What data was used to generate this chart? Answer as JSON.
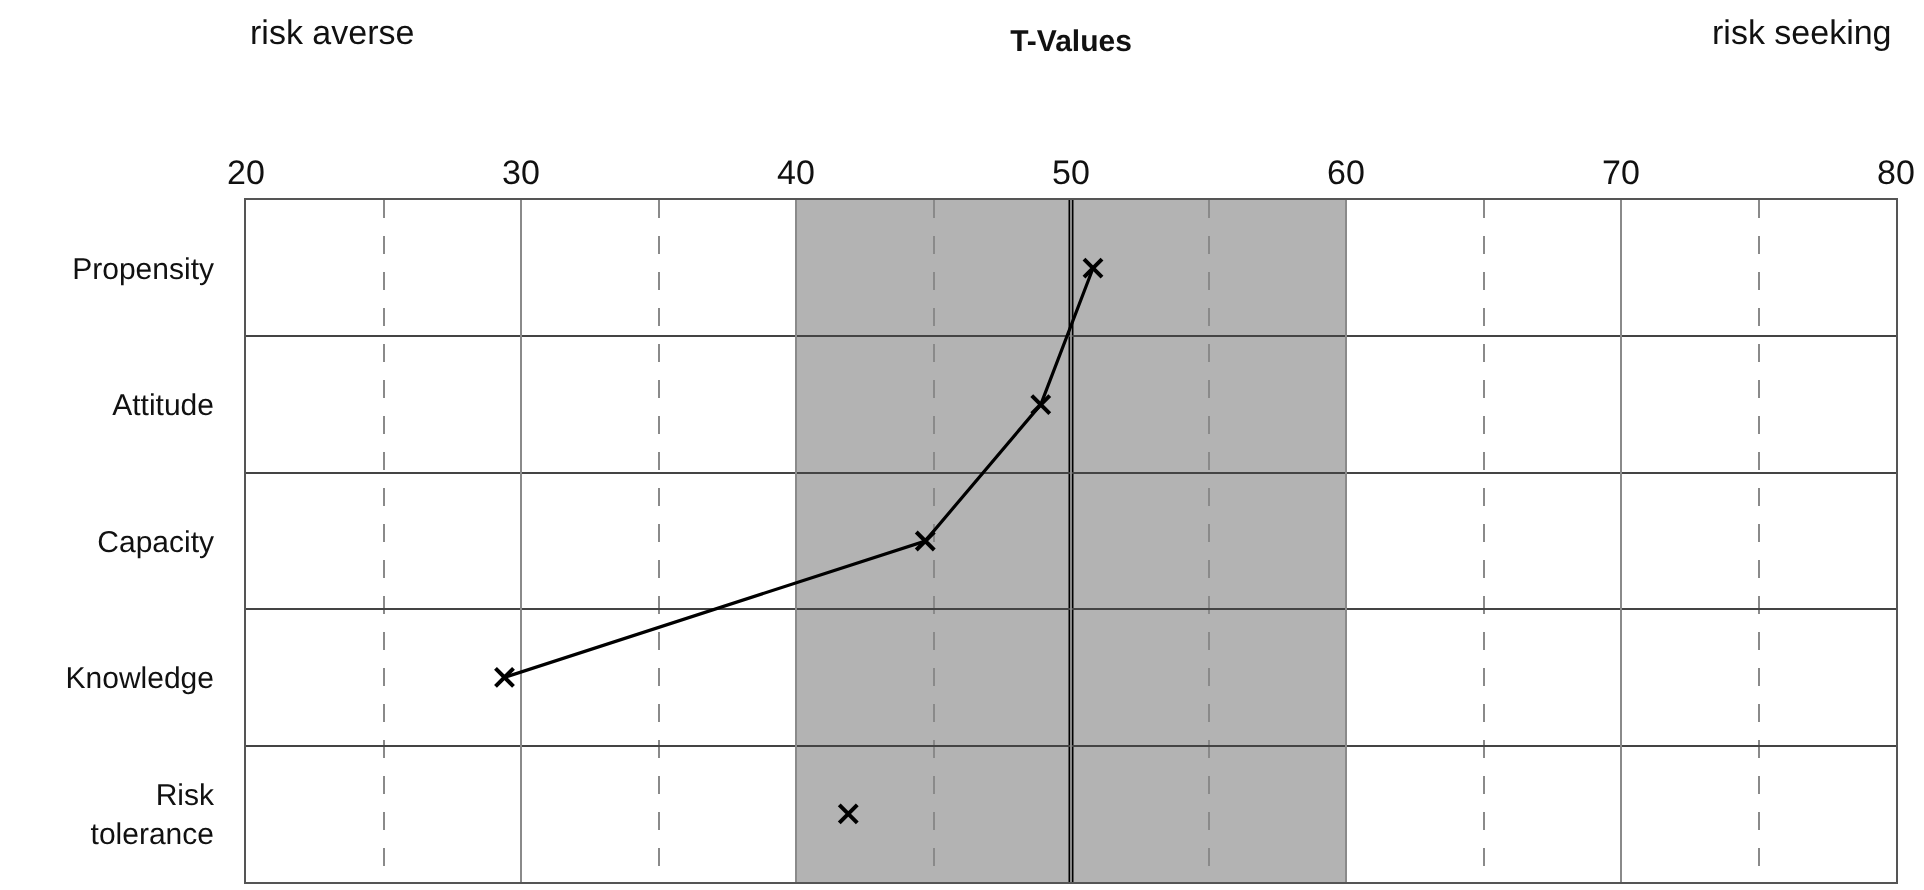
{
  "chart_data": {
    "type": "line",
    "orientation": "horizontal",
    "title": "T-Values",
    "annotations": [
      "risk averse",
      "risk seeking"
    ],
    "categories": [
      "Propensity",
      "Attitude",
      "Capacity",
      "Knowledge",
      "Risk tolerance"
    ],
    "series": [
      {
        "type": "line",
        "color": "#000000",
        "values": [
          50.8,
          48.9,
          44.7,
          29.4,
          null
        ]
      },
      {
        "type": "scatter",
        "color": "#000000",
        "values": [
          null,
          null,
          null,
          null,
          41.9
        ]
      }
    ],
    "marker": "cross",
    "xlim": [
      20,
      80
    ],
    "xticks": [
      20,
      {
        "value": 25,
        "label": null
      },
      30,
      {
        "value": 35,
        "label": null
      },
      40,
      {
        "value": 45,
        "label": null
      },
      50,
      {
        "value": 55,
        "label": null
      },
      60,
      {
        "value": 65,
        "label": null
      },
      70,
      {
        "value": 75,
        "label": null
      },
      80
    ],
    "bands": [
      {
        "axis": "x",
        "from": 40,
        "to": 60,
        "color": "#b3b3b3"
      }
    ],
    "ref_lines": [
      {
        "axis": "x",
        "value": 50,
        "color": "#000000"
      }
    ],
    "grid": true
  }
}
